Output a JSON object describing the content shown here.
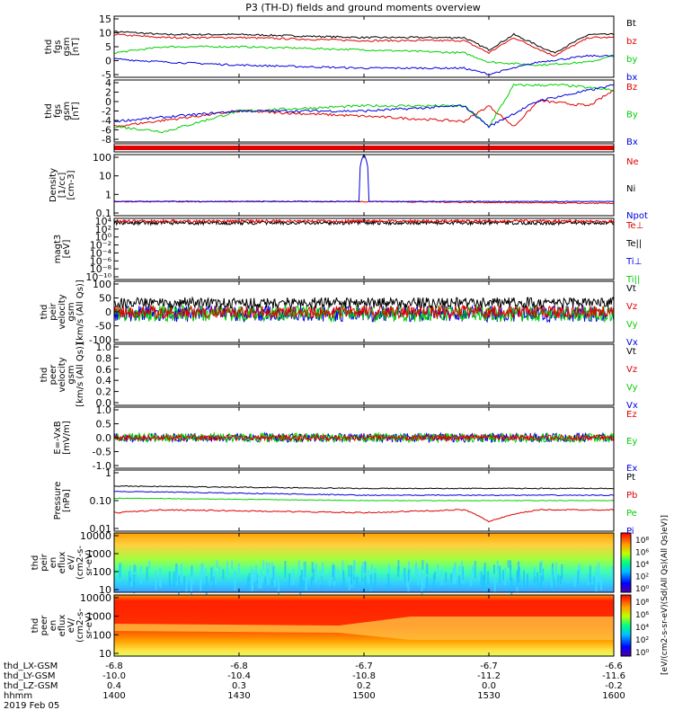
{
  "title": "P3 (TH-D) fields and ground moments overview",
  "colors": {
    "black": "#000000",
    "red": "#e00000",
    "green": "#00d000",
    "blue": "#0000e0"
  },
  "panels": [
    {
      "ylabel": [
        "thd",
        "fgs",
        "gsm",
        "[nT]"
      ],
      "ticks": [
        "15",
        "10",
        "5",
        "0",
        "-5"
      ],
      "legend": [
        {
          "text": "Bt",
          "color": "black"
        },
        {
          "text": "bz",
          "color": "red"
        },
        {
          "text": "by",
          "color": "green"
        },
        {
          "text": "bx",
          "color": "blue"
        }
      ]
    },
    {
      "ylabel": [
        "thd",
        "fgs",
        "gsm",
        "[nT]"
      ],
      "ticks": [
        "4",
        "2",
        "0",
        "-2",
        "-4",
        "-6",
        "-8"
      ],
      "legend": [
        {
          "text": "Bz",
          "color": "red"
        },
        {
          "text": "By",
          "color": "green"
        },
        {
          "text": "Bx",
          "color": "blue"
        }
      ]
    },
    {
      "ylabel": [
        "Density",
        "[1/cc]",
        "[cm-3]"
      ],
      "ticks": [
        "100",
        "10",
        "1",
        "0.1"
      ],
      "legend": [
        {
          "text": "Ne",
          "color": "red"
        },
        {
          "text": "Ni",
          "color": "black"
        },
        {
          "text": "Npot",
          "color": "blue"
        }
      ]
    },
    {
      "ylabel": [
        "magt3",
        "[eV]"
      ],
      "ticks": [
        "10⁴",
        "10²",
        "10⁰",
        "10⁻²",
        "10⁻⁴",
        "10⁻⁶",
        "10⁻⁸",
        "10⁻¹⁰"
      ],
      "legend": [
        {
          "text": "Te⊥",
          "color": "red"
        },
        {
          "text": "Te||",
          "color": "black"
        },
        {
          "text": "Ti⊥",
          "color": "blue"
        },
        {
          "text": "Ti||",
          "color": "green"
        }
      ]
    },
    {
      "ylabel": [
        "thd",
        "peir",
        "velocity",
        "gsm",
        "[km/s (All Qs)]"
      ],
      "ticks": [
        "100",
        "50",
        "0",
        "-50",
        "-100"
      ],
      "legend": [
        {
          "text": "Vt",
          "color": "black"
        },
        {
          "text": "Vz",
          "color": "red"
        },
        {
          "text": "Vy",
          "color": "green"
        },
        {
          "text": "Vx",
          "color": "blue"
        }
      ]
    },
    {
      "ylabel": [
        "thd",
        "peer",
        "velocity",
        "gsm",
        "[km/s (All Qs)]"
      ],
      "ticks": [
        "1.0",
        "0.8",
        "0.6",
        "0.4",
        "0.2",
        "0.0"
      ],
      "legend": [
        {
          "text": "Vt",
          "color": "black"
        },
        {
          "text": "Vz",
          "color": "red"
        },
        {
          "text": "Vy",
          "color": "green"
        },
        {
          "text": "Vx",
          "color": "blue"
        }
      ]
    },
    {
      "ylabel": [
        "E=-VxB",
        "[mV/m]"
      ],
      "ticks": [
        "1.0",
        "0.5",
        "0.0",
        "-0.5",
        "-1.0"
      ],
      "legend": [
        {
          "text": "Ez",
          "color": "red"
        },
        {
          "text": "Ey",
          "color": "green"
        },
        {
          "text": "Ex",
          "color": "blue"
        }
      ]
    },
    {
      "ylabel": [
        "Pressure",
        "[nPa]"
      ],
      "ticks": [
        "1",
        "0.10",
        "0.01"
      ],
      "legend": [
        {
          "text": "Pt",
          "color": "black"
        },
        {
          "text": "Pb",
          "color": "red"
        },
        {
          "text": "Pe",
          "color": "green"
        },
        {
          "text": "Pi",
          "color": "blue"
        }
      ]
    },
    {
      "ylabel": [
        "thd",
        "peir",
        "en",
        "eflux",
        "eV/",
        "(cm2-s-",
        "sr-eV)"
      ],
      "ticks": [
        "10000",
        "1000",
        "100",
        "10"
      ],
      "legend": []
    },
    {
      "ylabel": [
        "thd",
        "peer",
        "en",
        "eflux",
        "eV/",
        "(cm2-s-",
        "sr-eV)"
      ],
      "ticks": [
        "10000",
        "1000",
        "100",
        "10"
      ],
      "legend": []
    }
  ],
  "colorbar": {
    "ticks": [
      "10⁸",
      "10⁶",
      "10⁴",
      "10²",
      "10⁰"
    ],
    "label": "[eV/(cm2-s-sr-eV)(Sd(All Qs)(All Qs)eV)]"
  },
  "xaxis": {
    "row_labels": [
      "thd_LX-GSM",
      "thd_LY-GSM",
      "thd_LZ-GSM",
      "hhmm",
      "2019 Feb 05"
    ],
    "columns": [
      [
        "-6.8",
        "-10.0",
        "0.4",
        "1400"
      ],
      [
        "-6.8",
        "-10.4",
        "0.3",
        "1430"
      ],
      [
        "-6.7",
        "-10.8",
        "0.2",
        "1500"
      ],
      [
        "-6.7",
        "-11.2",
        "0.0",
        "1530"
      ],
      [
        "-6.6",
        "-11.6",
        "-0.2",
        "1600"
      ]
    ]
  },
  "chart_data": {
    "type": "line",
    "time_range": [
      "2019-02-05 14:00",
      "2019-02-05 16:00"
    ],
    "x_hhmm": [
      "1400",
      "1430",
      "1500",
      "1530",
      "1600"
    ],
    "panels": [
      {
        "name": "thd fgs gsm",
        "ylim": [
          -5,
          15
        ],
        "series": [
          {
            "name": "Bt",
            "knots": [
              [
                0,
                10
              ],
              [
                10,
                9
              ],
              [
                25,
                9
              ],
              [
                50,
                8
              ],
              [
                70,
                8
              ],
              [
                75,
                4
              ],
              [
                80,
                9
              ],
              [
                88,
                3
              ],
              [
                95,
                9
              ],
              [
                100,
                9
              ]
            ]
          },
          {
            "name": "bz",
            "knots": [
              [
                0,
                9
              ],
              [
                10,
                8
              ],
              [
                25,
                8
              ],
              [
                50,
                7
              ],
              [
                70,
                7
              ],
              [
                75,
                3
              ],
              [
                80,
                8
              ],
              [
                88,
                2
              ],
              [
                95,
                8
              ],
              [
                100,
                8
              ]
            ]
          },
          {
            "name": "by",
            "knots": [
              [
                0,
                3
              ],
              [
                10,
                5
              ],
              [
                25,
                5
              ],
              [
                50,
                4
              ],
              [
                70,
                3
              ],
              [
                75,
                0
              ],
              [
                85,
                -1
              ],
              [
                95,
                0
              ],
              [
                100,
                2
              ]
            ]
          },
          {
            "name": "bx",
            "knots": [
              [
                0,
                1
              ],
              [
                10,
                0
              ],
              [
                25,
                -1
              ],
              [
                50,
                -2
              ],
              [
                70,
                -2
              ],
              [
                75,
                -4
              ],
              [
                85,
                0
              ],
              [
                95,
                2
              ],
              [
                100,
                2
              ]
            ]
          }
        ]
      },
      {
        "name": "thd fgs gsm (rotated)",
        "ylim": [
          -8,
          4
        ],
        "series": [
          {
            "name": "Bz",
            "knots": [
              [
                0,
                -5
              ],
              [
                25,
                -2
              ],
              [
                50,
                -3
              ],
              [
                70,
                -4
              ],
              [
                75,
                -1
              ],
              [
                80,
                -5
              ],
              [
                85,
                0
              ],
              [
                95,
                -1
              ],
              [
                100,
                2
              ]
            ]
          },
          {
            "name": "By",
            "knots": [
              [
                0,
                -5
              ],
              [
                10,
                -6
              ],
              [
                25,
                -2
              ],
              [
                50,
                -1
              ],
              [
                70,
                -1
              ],
              [
                75,
                -5
              ],
              [
                80,
                3
              ],
              [
                90,
                3
              ],
              [
                100,
                2
              ]
            ]
          },
          {
            "name": "Bx",
            "knots": [
              [
                0,
                -4
              ],
              [
                25,
                -2
              ],
              [
                50,
                -2
              ],
              [
                70,
                -1
              ],
              [
                75,
                -5
              ],
              [
                85,
                0
              ],
              [
                95,
                2
              ],
              [
                100,
                3
              ]
            ]
          }
        ]
      },
      {
        "name": "Density",
        "ylim": [
          0.1,
          100
        ],
        "yscale": "log",
        "series": [
          {
            "name": "Ne",
            "knots": [
              [
                0,
                0.5
              ],
              [
                50,
                0.5
              ],
              [
                100,
                0.4
              ]
            ]
          },
          {
            "name": "Npot",
            "knots": [
              [
                0,
                0.5
              ],
              [
                49,
                0.5
              ],
              [
                50,
                100
              ],
              [
                51,
                0.5
              ],
              [
                100,
                0.5
              ]
            ]
          }
        ]
      },
      {
        "name": "Pressure",
        "ylim": [
          0.01,
          1
        ],
        "yscale": "log",
        "series": [
          {
            "name": "Pt",
            "knots": [
              [
                0,
                0.3
              ],
              [
                50,
                0.25
              ],
              [
                100,
                0.25
              ]
            ]
          },
          {
            "name": "Pb",
            "knots": [
              [
                0,
                0.04
              ],
              [
                10,
                0.05
              ],
              [
                50,
                0.04
              ],
              [
                70,
                0.05
              ],
              [
                75,
                0.02
              ],
              [
                85,
                0.05
              ],
              [
                100,
                0.05
              ]
            ]
          },
          {
            "name": "Pe",
            "knots": [
              [
                0,
                0.12
              ],
              [
                50,
                0.1
              ],
              [
                100,
                0.1
              ]
            ]
          },
          {
            "name": "Pi",
            "knots": [
              [
                0,
                0.2
              ],
              [
                50,
                0.15
              ],
              [
                100,
                0.15
              ]
            ]
          }
        ]
      }
    ]
  }
}
